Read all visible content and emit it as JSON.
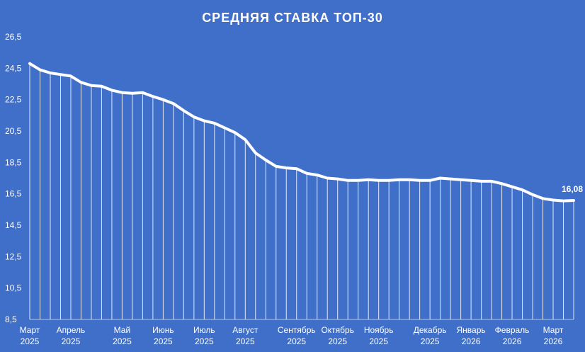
{
  "chart_data": {
    "type": "line",
    "title": "СРЕДНЯЯ СТАВКА ТОП-30",
    "xlabel": "",
    "ylabel": "",
    "ylim": [
      8.5,
      26.5
    ],
    "yticks": [
      "8,5",
      "10,5",
      "12,5",
      "14,5",
      "16,5",
      "18,5",
      "20,5",
      "22,5",
      "24,5",
      "26,5"
    ],
    "xticks": [
      {
        "month": "Март",
        "year": "2025",
        "index": 0
      },
      {
        "month": "Апрель",
        "year": "2025",
        "index": 4
      },
      {
        "month": "Май",
        "year": "2025",
        "index": 9
      },
      {
        "month": "Июнь",
        "year": "2025",
        "index": 13
      },
      {
        "month": "Июль",
        "year": "2025",
        "index": 17
      },
      {
        "month": "Август",
        "year": "2025",
        "index": 21
      },
      {
        "month": "Сентябрь",
        "year": "2025",
        "index": 26
      },
      {
        "month": "Октябрь",
        "year": "2025",
        "index": 30
      },
      {
        "month": "Ноябрь",
        "year": "2025",
        "index": 34
      },
      {
        "month": "Декабрь",
        "year": "2025",
        "index": 39
      },
      {
        "month": "Январь",
        "year": "2026",
        "index": 43
      },
      {
        "month": "Февраль",
        "year": "2026",
        "index": 47
      },
      {
        "month": "Март",
        "year": "2026",
        "index": 51
      }
    ],
    "series": [
      {
        "values": [
          24.8,
          24.4,
          24.2,
          24.1,
          24.0,
          23.6,
          23.4,
          23.35,
          23.1,
          22.95,
          22.9,
          22.95,
          22.7,
          22.5,
          22.25,
          21.8,
          21.4,
          21.15,
          21.0,
          20.7,
          20.4,
          19.95,
          19.1,
          18.65,
          18.25,
          18.15,
          18.1,
          17.8,
          17.7,
          17.5,
          17.45,
          17.35,
          17.35,
          17.4,
          17.35,
          17.35,
          17.4,
          17.4,
          17.35,
          17.35,
          17.5,
          17.45,
          17.4,
          17.35,
          17.3,
          17.3,
          17.15,
          16.95,
          16.75,
          16.45,
          16.2,
          16.1,
          16.05,
          16.08
        ]
      }
    ],
    "data_labels": [
      {
        "index": 53,
        "text": "16,08"
      }
    ],
    "grid": "vertical lines per point",
    "colors": {
      "background": "#3f6fc8",
      "line": "#ffffff",
      "text": "#ffffff"
    }
  }
}
